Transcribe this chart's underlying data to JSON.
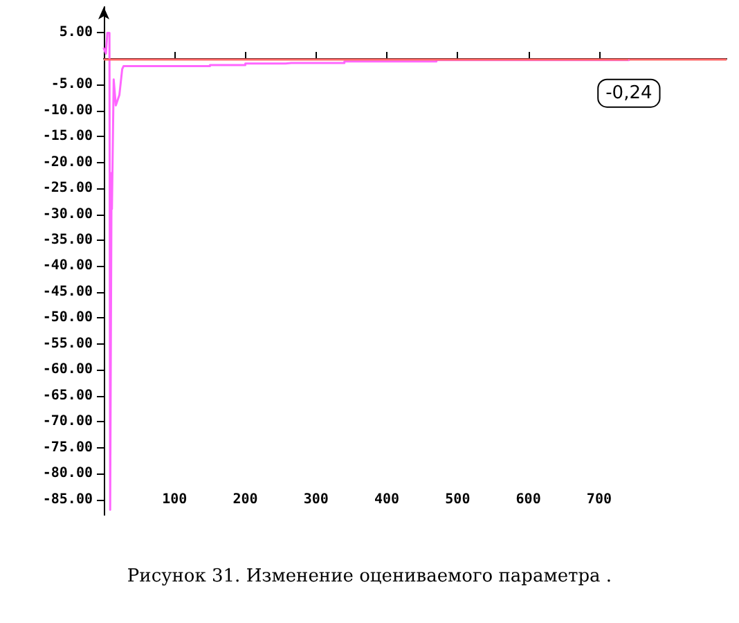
{
  "chart_data": {
    "type": "line",
    "title": "Рисунок 31. Изменение оцениваемого параметра .",
    "x": [
      0,
      3,
      5,
      8,
      9,
      11,
      11.5,
      13,
      14,
      17,
      22,
      26,
      28,
      150,
      150,
      200,
      200,
      257,
      265,
      340,
      340,
      470,
      470,
      742
    ],
    "series": [
      {
        "color": "#ff66ff",
        "values": [
          2,
          1,
          5,
          5,
          -87,
          -22,
          -29,
          -14,
          -4,
          -9,
          -7,
          -2,
          -1.4,
          -1.4,
          -1.2,
          -1.2,
          -0.9,
          -0.9,
          -0.8,
          -0.8,
          -0.5,
          -0.5,
          -0.24,
          -0.24
        ]
      }
    ],
    "xlim": [
      0,
      880
    ],
    "xticks": [
      100,
      200,
      300,
      400,
      500,
      600,
      700
    ],
    "ylim": [
      -88,
      10
    ],
    "yticks": [
      {
        "value": 5,
        "label": "5.00"
      },
      {
        "value": -5,
        "label": "-5.00"
      },
      {
        "value": -10,
        "label": "-10.00"
      },
      {
        "value": -15,
        "label": "-15.00"
      },
      {
        "value": -20,
        "label": "-20.00"
      },
      {
        "value": -25,
        "label": "-25.00"
      },
      {
        "value": -30,
        "label": "-30.00"
      },
      {
        "value": -35,
        "label": "-35.00"
      },
      {
        "value": -40,
        "label": "-40.00"
      },
      {
        "value": -45,
        "label": "-45.00"
      },
      {
        "value": -50,
        "label": "-50.00"
      },
      {
        "value": -55,
        "label": "-55.00"
      },
      {
        "value": -60,
        "label": "-60.00"
      },
      {
        "value": -65,
        "label": "-65.00"
      },
      {
        "value": -70,
        "label": "-70.00"
      },
      {
        "value": -75,
        "label": "-75.00"
      },
      {
        "value": -80,
        "label": "-80.00"
      },
      {
        "value": -85,
        "label": "-85.00"
      }
    ],
    "ref_lines": [
      {
        "axis": "y",
        "value": 0,
        "color": "#ff6666"
      }
    ],
    "annotations": [
      {
        "text": "-0,24",
        "x": 742,
        "y": -0.24
      }
    ],
    "grid": false,
    "marker": "none",
    "line_style": "solid"
  }
}
